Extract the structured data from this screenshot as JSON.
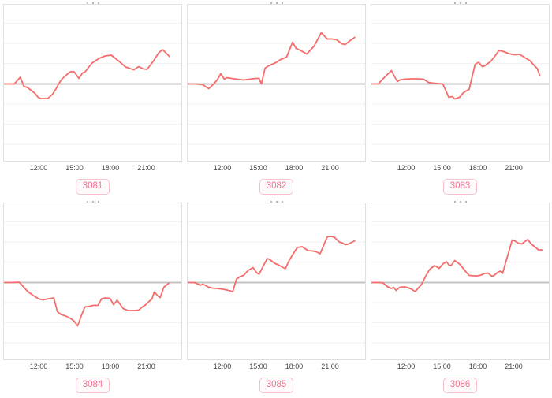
{
  "colors": {
    "background": "#ffffff",
    "line": "#f56c6c",
    "zero_line": "#c3c3c3",
    "grid_line": "#f2f2f2",
    "box_border": "#e0e0e0",
    "tick_text": "#444444",
    "badge_text": "#ee7591",
    "badge_border": "#f8c0cb",
    "badge_bg": "#fffafb",
    "fragment": "#a0a0a0"
  },
  "x_ticks": [
    "12:00",
    "15:00",
    "18:00",
    "21:00"
  ],
  "chart_data": [
    {
      "type": "line",
      "badge": "3081",
      "x_ticks": [
        "12:00",
        "15:00",
        "18:00",
        "21:00"
      ],
      "x_tick_hours": [
        12,
        15,
        18,
        21
      ],
      "x_range_hours": [
        9,
        23.1
      ],
      "ylabel": "",
      "y_units": "relative-to-zero-line (no y-axis labels visible)",
      "zero_line": true,
      "grid": "horizontal-only",
      "series": [
        [
          9.0,
          0
        ],
        [
          9.6,
          0
        ],
        [
          9.9,
          0
        ],
        [
          10.4,
          8.5
        ],
        [
          10.7,
          -3
        ],
        [
          11.0,
          -4.5
        ],
        [
          11.6,
          -11.5
        ],
        [
          11.9,
          -17
        ],
        [
          12.1,
          -18.5
        ],
        [
          12.7,
          -18.5
        ],
        [
          13.1,
          -13
        ],
        [
          13.4,
          -6
        ],
        [
          13.6,
          0
        ],
        [
          13.9,
          6.5
        ],
        [
          14.3,
          12
        ],
        [
          14.6,
          15.5
        ],
        [
          14.9,
          15.5
        ],
        [
          15.3,
          7
        ],
        [
          15.6,
          14
        ],
        [
          15.8,
          15
        ],
        [
          16.4,
          26.5
        ],
        [
          17.0,
          32.5
        ],
        [
          17.5,
          35.5
        ],
        [
          18.0,
          36.5
        ],
        [
          18.6,
          29.5
        ],
        [
          19.2,
          21.5
        ],
        [
          19.9,
          18
        ],
        [
          20.3,
          22
        ],
        [
          20.7,
          19
        ],
        [
          21.0,
          18.5
        ],
        [
          21.5,
          28.5
        ],
        [
          22.0,
          40
        ],
        [
          22.3,
          43.5
        ],
        [
          22.9,
          34.5
        ]
      ]
    },
    {
      "type": "line",
      "badge": "3082",
      "x_ticks": [
        "12:00",
        "15:00",
        "18:00",
        "21:00"
      ],
      "x_tick_hours": [
        12,
        15,
        18,
        21
      ],
      "x_range_hours": [
        9,
        23.0
      ],
      "ylabel": "",
      "y_units": "relative-to-zero-line (no y-axis labels visible)",
      "zero_line": true,
      "grid": "horizontal-only",
      "series": [
        [
          9.0,
          0
        ],
        [
          9.7,
          0
        ],
        [
          10.3,
          -1
        ],
        [
          10.8,
          -6
        ],
        [
          11.2,
          0
        ],
        [
          11.5,
          5
        ],
        [
          11.8,
          13
        ],
        [
          12.1,
          6
        ],
        [
          12.3,
          8
        ],
        [
          12.7,
          7
        ],
        [
          13.2,
          6
        ],
        [
          13.7,
          5
        ],
        [
          14.2,
          6
        ],
        [
          14.7,
          7
        ],
        [
          15.0,
          7
        ],
        [
          15.2,
          0
        ],
        [
          15.5,
          20
        ],
        [
          15.8,
          23
        ],
        [
          16.1,
          25
        ],
        [
          16.4,
          27
        ],
        [
          16.8,
          31
        ],
        [
          17.3,
          34
        ],
        [
          17.8,
          53
        ],
        [
          18.1,
          45
        ],
        [
          18.4,
          43
        ],
        [
          19.0,
          38
        ],
        [
          19.6,
          48
        ],
        [
          20.2,
          65
        ],
        [
          20.7,
          57
        ],
        [
          21.1,
          57
        ],
        [
          21.5,
          56
        ],
        [
          21.9,
          51
        ],
        [
          22.2,
          50
        ],
        [
          22.7,
          56
        ],
        [
          23.0,
          59
        ]
      ]
    },
    {
      "type": "line",
      "badge": "3083",
      "x_ticks": [
        "12:00",
        "15:00",
        "18:00",
        "21:00"
      ],
      "x_tick_hours": [
        12,
        15,
        18,
        21
      ],
      "x_range_hours": [
        9,
        23.1
      ],
      "ylabel": "",
      "y_units": "relative-to-zero-line (no y-axis labels visible)",
      "zero_line": true,
      "grid": "horizontal-only",
      "series": [
        [
          9.0,
          0
        ],
        [
          9.6,
          0
        ],
        [
          10.1,
          8
        ],
        [
          10.7,
          17
        ],
        [
          11.2,
          3
        ],
        [
          11.4,
          5
        ],
        [
          11.8,
          6
        ],
        [
          12.4,
          6.5
        ],
        [
          12.9,
          6.5
        ],
        [
          13.4,
          6
        ],
        [
          13.8,
          2
        ],
        [
          14.2,
          1
        ],
        [
          14.6,
          0.5
        ],
        [
          15.0,
          0
        ],
        [
          15.3,
          -10
        ],
        [
          15.5,
          -17
        ],
        [
          15.8,
          -16
        ],
        [
          16.0,
          -19
        ],
        [
          16.4,
          -17
        ],
        [
          16.7,
          -11.5
        ],
        [
          17.0,
          -8.5
        ],
        [
          17.2,
          -7
        ],
        [
          17.7,
          25
        ],
        [
          18.0,
          27.5
        ],
        [
          18.3,
          22
        ],
        [
          18.5,
          23
        ],
        [
          19.0,
          28.5
        ],
        [
          19.4,
          36
        ],
        [
          19.7,
          42.5
        ],
        [
          20.1,
          41
        ],
        [
          20.5,
          38.5
        ],
        [
          20.8,
          37.5
        ],
        [
          21.1,
          37
        ],
        [
          21.4,
          37.5
        ],
        [
          21.7,
          35
        ],
        [
          22.0,
          32
        ],
        [
          22.3,
          29.5
        ],
        [
          22.6,
          24
        ],
        [
          22.9,
          19.5
        ],
        [
          23.1,
          11
        ]
      ]
    },
    {
      "type": "line",
      "badge": "3084",
      "x_ticks": [
        "12:00",
        "15:00",
        "18:00",
        "21:00"
      ],
      "x_tick_hours": [
        12,
        15,
        18,
        21
      ],
      "x_range_hours": [
        9,
        22.8
      ],
      "ylabel": "",
      "y_units": "relative-to-zero-line (no y-axis labels visible)",
      "zero_line": true,
      "grid": "horizontal-only",
      "series": [
        [
          9.0,
          0
        ],
        [
          9.7,
          0
        ],
        [
          10.3,
          0.5
        ],
        [
          10.7,
          -6
        ],
        [
          11.0,
          -11
        ],
        [
          11.4,
          -15.5
        ],
        [
          11.7,
          -18.5
        ],
        [
          12.0,
          -21
        ],
        [
          12.3,
          -22
        ],
        [
          12.6,
          -21
        ],
        [
          13.0,
          -20
        ],
        [
          13.2,
          -19.5
        ],
        [
          13.5,
          -37
        ],
        [
          13.8,
          -40.5
        ],
        [
          14.2,
          -42.5
        ],
        [
          14.6,
          -45.5
        ],
        [
          14.9,
          -49
        ],
        [
          15.2,
          -55
        ],
        [
          15.5,
          -42
        ],
        [
          15.8,
          -31
        ],
        [
          16.2,
          -30
        ],
        [
          16.5,
          -29
        ],
        [
          16.9,
          -29
        ],
        [
          17.2,
          -20.5
        ],
        [
          17.5,
          -19.5
        ],
        [
          17.9,
          -20
        ],
        [
          18.2,
          -28
        ],
        [
          18.5,
          -22.5
        ],
        [
          19.0,
          -33
        ],
        [
          19.4,
          -35.5
        ],
        [
          19.9,
          -35.5
        ],
        [
          20.3,
          -35
        ],
        [
          20.6,
          -31
        ],
        [
          20.9,
          -28
        ],
        [
          21.2,
          -23.5
        ],
        [
          21.4,
          -21
        ],
        [
          21.6,
          -12
        ],
        [
          21.9,
          -17
        ],
        [
          22.1,
          -19
        ],
        [
          22.4,
          -6
        ],
        [
          22.8,
          -1
        ]
      ]
    },
    {
      "type": "line",
      "badge": "3085",
      "x_ticks": [
        "12:00",
        "15:00",
        "18:00",
        "21:00"
      ],
      "x_tick_hours": [
        12,
        15,
        18,
        21
      ],
      "x_range_hours": [
        9,
        23.0
      ],
      "ylabel": "",
      "y_units": "relative-to-zero-line (no y-axis labels visible)",
      "zero_line": true,
      "grid": "horizontal-only",
      "series": [
        [
          9.0,
          0
        ],
        [
          9.6,
          0
        ],
        [
          10.1,
          -3.5
        ],
        [
          10.3,
          -2
        ],
        [
          10.8,
          -6
        ],
        [
          11.1,
          -7
        ],
        [
          11.5,
          -7.5
        ],
        [
          12.0,
          -8.5
        ],
        [
          12.3,
          -9.5
        ],
        [
          12.6,
          -10.5
        ],
        [
          12.8,
          -12
        ],
        [
          13.1,
          4
        ],
        [
          13.4,
          7.5
        ],
        [
          13.7,
          9
        ],
        [
          14.1,
          15.5
        ],
        [
          14.5,
          19
        ],
        [
          14.8,
          12.5
        ],
        [
          15.0,
          10.5
        ],
        [
          15.4,
          22.5
        ],
        [
          15.7,
          30.5
        ],
        [
          15.9,
          29
        ],
        [
          16.3,
          24.5
        ],
        [
          16.6,
          22.5
        ],
        [
          16.9,
          20
        ],
        [
          17.2,
          17.5
        ],
        [
          17.5,
          27.5
        ],
        [
          17.9,
          37.5
        ],
        [
          18.2,
          44.5
        ],
        [
          18.6,
          45.5
        ],
        [
          19.1,
          40.5
        ],
        [
          19.5,
          40
        ],
        [
          19.8,
          39
        ],
        [
          20.1,
          36.5
        ],
        [
          20.7,
          58
        ],
        [
          21.0,
          58.5
        ],
        [
          21.3,
          57.5
        ],
        [
          21.7,
          51.5
        ],
        [
          22.0,
          50
        ],
        [
          22.2,
          48
        ],
        [
          22.5,
          49
        ],
        [
          23.0,
          53
        ]
      ]
    },
    {
      "type": "line",
      "badge": "3086",
      "x_ticks": [
        "12:00",
        "15:00",
        "18:00",
        "21:00"
      ],
      "x_tick_hours": [
        12,
        15,
        18,
        21
      ],
      "x_range_hours": [
        9,
        23.3
      ],
      "ylabel": "",
      "y_units": "relative-to-zero-line (no y-axis labels visible)",
      "zero_line": true,
      "grid": "horizontal-only",
      "series": [
        [
          9.0,
          0
        ],
        [
          9.7,
          0
        ],
        [
          10.0,
          -0.5
        ],
        [
          10.4,
          -5.5
        ],
        [
          10.7,
          -7.5
        ],
        [
          10.9,
          -6
        ],
        [
          11.1,
          -10
        ],
        [
          11.4,
          -6
        ],
        [
          11.8,
          -5.5
        ],
        [
          12.1,
          -6.5
        ],
        [
          12.4,
          -8.5
        ],
        [
          12.7,
          -11.5
        ],
        [
          13.0,
          -6
        ],
        [
          13.2,
          -3
        ],
        [
          13.6,
          9
        ],
        [
          13.9,
          16.5
        ],
        [
          14.3,
          21.5
        ],
        [
          14.5,
          20
        ],
        [
          14.7,
          18
        ],
        [
          15.0,
          23.5
        ],
        [
          15.3,
          26.5
        ],
        [
          15.5,
          22.5
        ],
        [
          15.7,
          21.5
        ],
        [
          16.0,
          28
        ],
        [
          16.4,
          23.5
        ],
        [
          16.7,
          18
        ],
        [
          17.0,
          12.5
        ],
        [
          17.2,
          9
        ],
        [
          17.6,
          8.5
        ],
        [
          17.9,
          8.5
        ],
        [
          18.2,
          9.5
        ],
        [
          18.5,
          11.5
        ],
        [
          18.8,
          12
        ],
        [
          19.0,
          9
        ],
        [
          19.2,
          8
        ],
        [
          19.6,
          13
        ],
        [
          19.8,
          14.5
        ],
        [
          20.0,
          11.5
        ],
        [
          20.8,
          54
        ],
        [
          21.0,
          53
        ],
        [
          21.3,
          50
        ],
        [
          21.6,
          49
        ],
        [
          21.9,
          52.5
        ],
        [
          22.1,
          54.5
        ],
        [
          22.4,
          49
        ],
        [
          22.8,
          44
        ],
        [
          23.0,
          41.5
        ],
        [
          23.3,
          41.5
        ]
      ]
    }
  ]
}
